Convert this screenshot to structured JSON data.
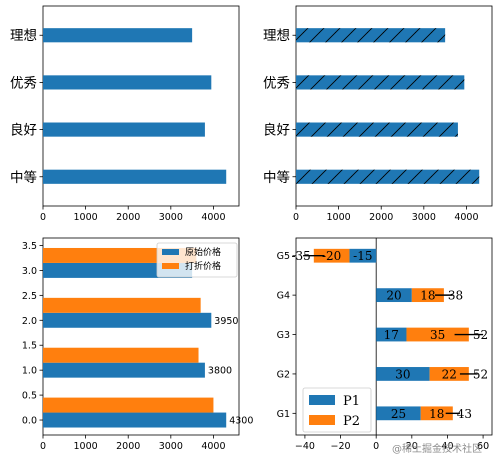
{
  "chart_data": [
    {
      "type": "bar",
      "orientation": "horizontal",
      "categories": [
        "中等",
        "良好",
        "优秀",
        "理想"
      ],
      "values": [
        4300,
        3800,
        3950,
        3500
      ],
      "xlim": [
        0,
        4600
      ],
      "xticks": [
        "0",
        "1000",
        "2000",
        "3000",
        "4000"
      ],
      "color": "#1f77b4",
      "hatch": false
    },
    {
      "type": "bar",
      "orientation": "horizontal",
      "categories": [
        "中等",
        "良好",
        "优秀",
        "理想"
      ],
      "values": [
        4300,
        3800,
        3950,
        3500
      ],
      "xlim": [
        0,
        4600
      ],
      "xticks": [
        "0",
        "1000",
        "2000",
        "3000",
        "4000"
      ],
      "color": "#1f77b4",
      "hatch": true
    },
    {
      "type": "bar",
      "orientation": "horizontal",
      "grouped": true,
      "y": [
        0,
        1,
        2,
        3
      ],
      "yticks": [
        "0.0",
        "0.5",
        "1.0",
        "1.5",
        "2.0",
        "2.5",
        "3.0",
        "3.5"
      ],
      "xticks": [
        "0",
        "1000",
        "2000",
        "3000",
        "4000"
      ],
      "xlim": [
        0,
        4600
      ],
      "ylim": [
        -0.3,
        3.65
      ],
      "series": [
        {
          "name": "原始价格",
          "color": "#1f77b4",
          "values": [
            4300,
            3800,
            3950,
            3500
          ],
          "labels": [
            "4300",
            "3800",
            "3950",
            ""
          ]
        },
        {
          "name": "打折价格",
          "color": "#ff7f0e",
          "values": [
            4000,
            3650,
            3700,
            3600
          ],
          "labels": [
            "",
            "",
            "",
            ""
          ]
        }
      ],
      "legend": "upper-right"
    },
    {
      "type": "bar",
      "orientation": "horizontal",
      "stacked": true,
      "categories": [
        "G1",
        "G2",
        "G3",
        "G4",
        "G5"
      ],
      "xlim": [
        -45,
        65
      ],
      "xticks": [
        "−40",
        "−20",
        "0",
        "20",
        "40",
        "60"
      ],
      "series": [
        {
          "name": "P1",
          "color": "#1f77b4",
          "values": [
            25,
            30,
            17,
            20,
            -15
          ],
          "labels": [
            "25",
            "30",
            "17",
            "20",
            "-15"
          ]
        },
        {
          "name": "P2",
          "color": "#ff7f0e",
          "values": [
            18,
            22,
            35,
            18,
            -20
          ],
          "labels": [
            "18",
            "22",
            "35",
            "18",
            "-20"
          ]
        }
      ],
      "totals": [
        "43",
        "52",
        "52",
        "38",
        "-35"
      ],
      "error": [
        4,
        5,
        8,
        5,
        6
      ],
      "legend": "lower-left"
    }
  ],
  "watermark": "@稀土掘金技术社区"
}
